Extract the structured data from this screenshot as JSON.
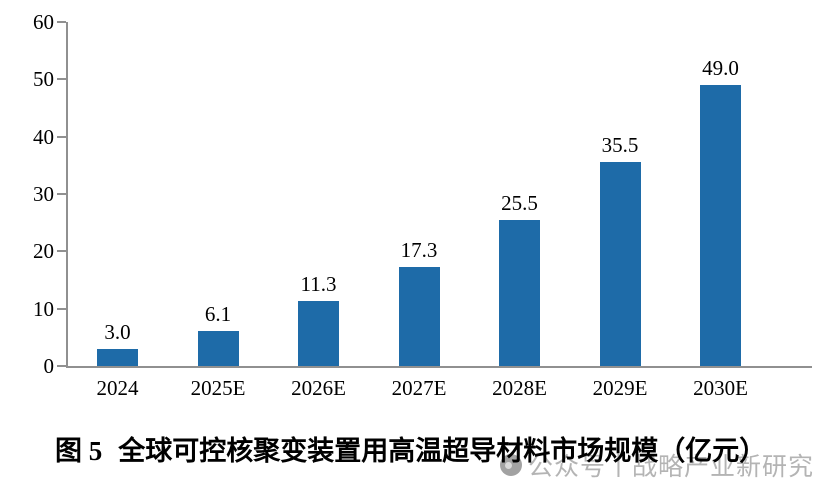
{
  "figure": {
    "number": "图 5",
    "title": "全球可控核聚变装置用高温超导材料市场规模（亿元）"
  },
  "watermark": {
    "icon": "wechat-bubble-icon",
    "text": "公众号丨战略产业新研究"
  },
  "chart_data": {
    "type": "bar",
    "categories": [
      "2024",
      "2025E",
      "2026E",
      "2027E",
      "2028E",
      "2029E",
      "2030E"
    ],
    "values": [
      3.0,
      6.1,
      11.3,
      17.3,
      25.5,
      35.5,
      49.0
    ],
    "data_labels": [
      "3.0",
      "6.1",
      "11.3",
      "17.3",
      "25.5",
      "35.5",
      "49.0"
    ],
    "title": "图 5 全球可控核聚变装置用高温超导材料市场规模（亿元）",
    "xlabel": "",
    "ylabel": "",
    "ylim": [
      0,
      60
    ],
    "yticks": [
      0,
      10,
      20,
      30,
      40,
      50,
      60
    ],
    "grid": false,
    "legend": "none",
    "bar_color": "#1E6BA8",
    "axis_color": "#909090",
    "text_color": "#000000",
    "watermark_color": "#b4b4b4"
  }
}
